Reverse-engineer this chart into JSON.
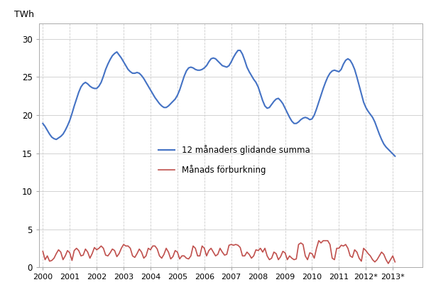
{
  "title": "",
  "ylabel": "TWh",
  "xlim_start": 1999.85,
  "xlim_end": 2014.1,
  "ylim": [
    0,
    32
  ],
  "yticks": [
    0,
    5,
    10,
    15,
    20,
    25,
    30
  ],
  "xtick_labels": [
    "2000",
    "2001",
    "2002",
    "2003",
    "2004",
    "2005",
    "2006",
    "2007",
    "2008",
    "2009",
    "2010",
    "2011",
    "2012*",
    "2013*"
  ],
  "xtick_positions": [
    2000,
    2001,
    2002,
    2003,
    2004,
    2005,
    2006,
    2007,
    2008,
    2009,
    2010,
    2011,
    2012,
    2013
  ],
  "line1_color": "#4472C4",
  "line2_color": "#C0504D",
  "legend1": "12 månaders glidande summa",
  "legend2": "Månads förburkning",
  "bg_color": "#FFFFFF",
  "rolling12": [
    18.9,
    18.5,
    18.0,
    17.5,
    17.1,
    16.9,
    16.8,
    17.0,
    17.2,
    17.5,
    18.0,
    18.6,
    19.3,
    20.2,
    21.2,
    22.1,
    23.0,
    23.7,
    24.1,
    24.3,
    24.1,
    23.8,
    23.6,
    23.5,
    23.5,
    23.8,
    24.3,
    25.1,
    26.0,
    26.7,
    27.3,
    27.8,
    28.1,
    28.3,
    27.9,
    27.5,
    27.0,
    26.5,
    26.0,
    25.7,
    25.5,
    25.5,
    25.6,
    25.5,
    25.2,
    24.8,
    24.3,
    23.8,
    23.3,
    22.8,
    22.3,
    21.9,
    21.5,
    21.2,
    21.0,
    21.0,
    21.2,
    21.5,
    21.8,
    22.1,
    22.6,
    23.3,
    24.2,
    25.1,
    25.8,
    26.2,
    26.3,
    26.2,
    26.0,
    25.9,
    25.9,
    26.0,
    26.2,
    26.5,
    27.0,
    27.4,
    27.5,
    27.4,
    27.1,
    26.8,
    26.5,
    26.4,
    26.3,
    26.5,
    27.0,
    27.6,
    28.1,
    28.5,
    28.5,
    28.0,
    27.2,
    26.3,
    25.7,
    25.2,
    24.7,
    24.3,
    23.7,
    22.8,
    21.9,
    21.2,
    20.9,
    21.0,
    21.4,
    21.8,
    22.1,
    22.2,
    21.9,
    21.5,
    20.9,
    20.3,
    19.7,
    19.2,
    18.9,
    18.9,
    19.1,
    19.4,
    19.6,
    19.7,
    19.6,
    19.4,
    19.5,
    20.0,
    20.8,
    21.7,
    22.6,
    23.5,
    24.3,
    25.0,
    25.5,
    25.8,
    25.9,
    25.8,
    25.7,
    26.0,
    26.7,
    27.2,
    27.4,
    27.2,
    26.7,
    26.0,
    25.0,
    23.9,
    22.8,
    21.7,
    21.0,
    20.5,
    20.1,
    19.7,
    19.1,
    18.3,
    17.5,
    16.8,
    16.2,
    15.8,
    15.5,
    15.2,
    14.9,
    14.6
  ],
  "monthly": [
    2.1,
    1.0,
    1.5,
    0.8,
    0.9,
    1.2,
    1.8,
    2.3,
    2.0,
    1.0,
    1.5,
    2.2,
    1.9,
    0.9,
    2.2,
    2.5,
    2.2,
    1.5,
    1.6,
    2.4,
    2.0,
    1.2,
    1.8,
    2.6,
    2.3,
    2.5,
    2.8,
    2.5,
    1.6,
    1.5,
    1.9,
    2.4,
    2.2,
    1.4,
    1.8,
    2.5,
    3.0,
    2.8,
    2.8,
    2.5,
    1.5,
    1.3,
    1.8,
    2.4,
    2.0,
    1.2,
    1.5,
    2.5,
    2.3,
    2.8,
    2.8,
    2.4,
    1.5,
    1.2,
    1.7,
    2.5,
    2.0,
    1.1,
    1.4,
    2.2,
    2.0,
    1.1,
    1.5,
    1.5,
    1.2,
    1.1,
    1.5,
    2.8,
    2.5,
    1.5,
    1.5,
    2.8,
    2.5,
    1.5,
    2.2,
    2.5,
    2.0,
    1.5,
    1.7,
    2.5,
    2.0,
    1.6,
    1.7,
    2.9,
    3.0,
    2.9,
    3.0,
    2.9,
    2.6,
    1.5,
    1.5,
    2.0,
    1.7,
    1.2,
    1.5,
    2.3,
    2.2,
    2.5,
    2.0,
    2.5,
    1.5,
    1.0,
    1.2,
    2.0,
    1.8,
    1.0,
    1.4,
    2.1,
    1.9,
    1.0,
    1.5,
    1.2,
    1.0,
    1.1,
    3.0,
    3.2,
    3.0,
    1.5,
    1.0,
    1.9,
    1.8,
    1.2,
    2.5,
    3.5,
    3.2,
    3.5,
    3.5,
    3.5,
    3.0,
    1.2,
    1.0,
    2.5,
    2.5,
    2.9,
    2.8,
    3.0,
    2.5,
    1.5,
    1.3,
    2.3,
    2.0,
    1.2,
    0.8,
    2.5,
    2.2,
    1.8,
    1.5,
    1.0,
    0.7,
    1.0,
    1.5,
    2.0,
    1.7,
    1.0,
    0.5,
    1.0,
    1.5,
    0.7
  ]
}
